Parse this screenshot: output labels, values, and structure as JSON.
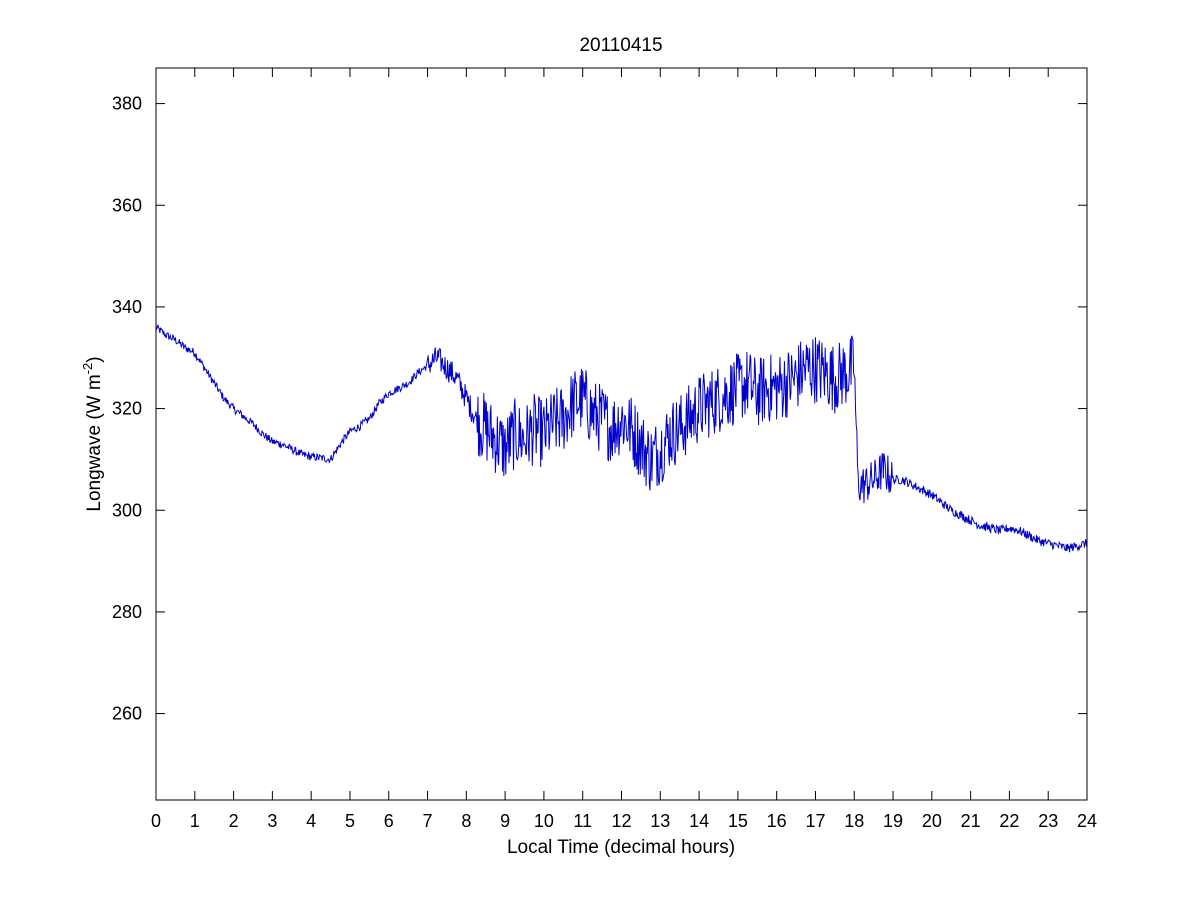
{
  "chart_data": {
    "type": "line",
    "title": "20110415",
    "xlabel": "Local Time (decimal hours)",
    "ylabel": "Longwave (W m",
    "ylabel_superscript": "-2",
    "ylabel_close": ")",
    "xlim": [
      0,
      24
    ],
    "ylim": [
      243,
      387
    ],
    "xticks": [
      0,
      1,
      2,
      3,
      4,
      5,
      6,
      7,
      8,
      9,
      10,
      11,
      12,
      13,
      14,
      15,
      16,
      17,
      18,
      19,
      20,
      21,
      22,
      23,
      24
    ],
    "yticks": [
      260,
      280,
      300,
      320,
      340,
      360,
      380
    ],
    "grid": false,
    "line_color": "#0000cc",
    "series": [
      {
        "x": [
          0,
          0.25,
          0.5,
          0.75,
          1,
          1.25,
          1.5,
          1.75,
          2,
          2.25,
          2.5,
          2.75,
          3,
          3.25,
          3.5,
          3.75,
          4,
          4.25,
          4.5,
          4.75,
          5,
          5.25,
          5.5,
          5.75,
          6,
          6.25,
          6.5,
          6.75,
          7,
          7.25,
          7.5,
          7.75,
          8,
          8.25,
          8.5,
          8.75,
          9,
          9.25,
          9.5,
          9.75,
          10,
          10.25,
          10.5,
          10.75,
          11,
          11.25,
          11.5,
          11.75,
          12,
          12.25,
          12.5,
          12.75,
          13,
          13.25,
          13.5,
          13.75,
          14,
          14.25,
          14.5,
          14.75,
          15,
          15.25,
          15.5,
          15.75,
          16,
          16.25,
          16.5,
          16.75,
          17,
          17.25,
          17.5,
          17.75,
          18,
          18.1,
          18.25,
          18.5,
          18.75,
          19,
          19.25,
          19.5,
          19.75,
          20,
          20.25,
          20.5,
          20.75,
          21,
          21.25,
          21.5,
          21.75,
          22,
          22.25,
          22.5,
          22.75,
          23,
          23.25,
          23.5,
          23.75,
          24
        ],
        "y": [
          336,
          334.5,
          333.5,
          332,
          331,
          328,
          325,
          322,
          320,
          318.5,
          317,
          315,
          313.5,
          313,
          312,
          311,
          310.5,
          310.3,
          310,
          313,
          315.5,
          316.5,
          318,
          321,
          323,
          324,
          325,
          327,
          328.5,
          330,
          328,
          326,
          322,
          318,
          316,
          314,
          312,
          315,
          314,
          316,
          315,
          317,
          318,
          321,
          322,
          319,
          318,
          316,
          318,
          316,
          313,
          310,
          312,
          315,
          316,
          318,
          320,
          321,
          322,
          323,
          324,
          325,
          323,
          324,
          324,
          325,
          326,
          328,
          328,
          327,
          326,
          327,
          328,
          305,
          305,
          306,
          308,
          306,
          306,
          305,
          304,
          303,
          301.5,
          300,
          299,
          298,
          297,
          296.5,
          296,
          296.5,
          296,
          295,
          294,
          293.5,
          293,
          292.5,
          293,
          293.5
        ]
      }
    ]
  }
}
